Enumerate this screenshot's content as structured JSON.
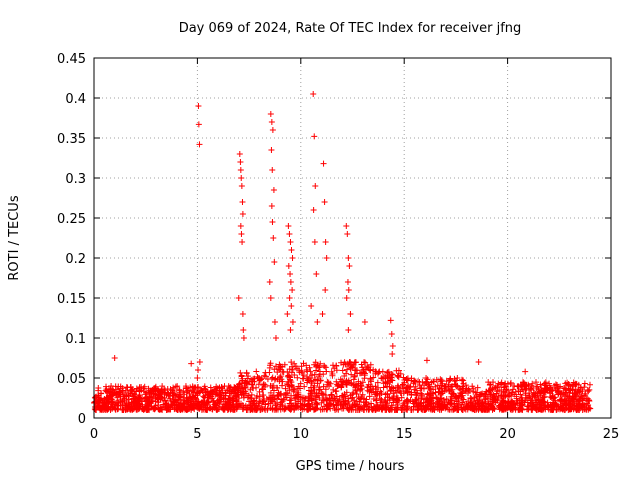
{
  "chart_data": {
    "type": "scatter",
    "title": "Day 069 of 2024, Rate Of TEC Index for receiver jfng",
    "xlabel": "GPS time / hours",
    "ylabel": "ROTI / TECUs",
    "xlim": [
      0,
      25
    ],
    "ylim": [
      0,
      0.45
    ],
    "xticks": [
      "0",
      "5",
      "10",
      "15",
      "20",
      "25"
    ],
    "yticks": [
      "0",
      "0.05",
      "0.1",
      "0.15",
      "0.2",
      "0.25",
      "0.3",
      "0.35",
      "0.4",
      "0.45"
    ],
    "grid": true,
    "marker": "+",
    "marker_color": "#ff0000",
    "grid_color": "#a0a0a0",
    "series": [
      {
        "name": "ROTI",
        "x": [
          5.05,
          5.07,
          5.1,
          5.12,
          5.0,
          5.03,
          7.05,
          7.08,
          7.1,
          7.12,
          7.15,
          7.18,
          7.2,
          7.1,
          7.13,
          7.16,
          7.0,
          7.2,
          7.22,
          7.25,
          8.55,
          8.6,
          8.65,
          8.58,
          8.62,
          8.7,
          8.6,
          8.63,
          8.67,
          8.72,
          8.5,
          8.55,
          8.75,
          8.8,
          9.4,
          9.45,
          9.5,
          9.55,
          9.6,
          9.42,
          9.48,
          9.52,
          9.58,
          9.46,
          9.54,
          9.35,
          9.62,
          9.5,
          10.6,
          10.65,
          10.7,
          10.62,
          10.68,
          10.75,
          10.5,
          10.8,
          11.1,
          11.15,
          11.2,
          11.25,
          11.18,
          11.05,
          12.2,
          12.25,
          12.3,
          12.35,
          12.28,
          12.32,
          12.22,
          12.4,
          12.3,
          14.35,
          14.4,
          14.45,
          14.42,
          1.0,
          13.1,
          16.1,
          18.6,
          20.85,
          4.7
        ],
        "y": [
          0.39,
          0.367,
          0.342,
          0.07,
          0.05,
          0.06,
          0.33,
          0.32,
          0.31,
          0.3,
          0.29,
          0.27,
          0.255,
          0.24,
          0.23,
          0.22,
          0.15,
          0.13,
          0.11,
          0.1,
          0.38,
          0.37,
          0.36,
          0.335,
          0.31,
          0.285,
          0.265,
          0.245,
          0.225,
          0.195,
          0.17,
          0.15,
          0.12,
          0.1,
          0.24,
          0.23,
          0.22,
          0.21,
          0.2,
          0.19,
          0.18,
          0.17,
          0.16,
          0.15,
          0.14,
          0.13,
          0.12,
          0.11,
          0.405,
          0.352,
          0.29,
          0.26,
          0.22,
          0.18,
          0.14,
          0.12,
          0.318,
          0.27,
          0.22,
          0.2,
          0.16,
          0.13,
          0.24,
          0.23,
          0.2,
          0.19,
          0.17,
          0.16,
          0.15,
          0.13,
          0.11,
          0.122,
          0.105,
          0.09,
          0.08,
          0.075,
          0.12,
          0.072,
          0.07,
          0.058,
          0.068
        ]
      }
    ]
  }
}
